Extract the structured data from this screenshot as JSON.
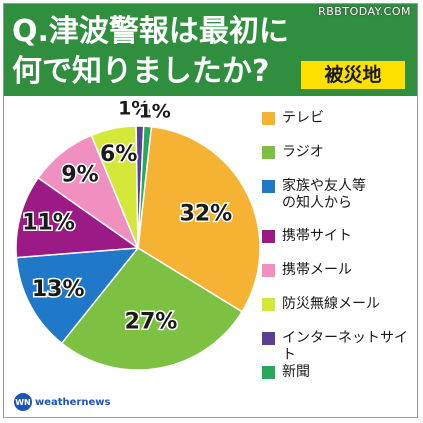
{
  "header": {
    "title": "Q.津波警報は最初に何で知りましたか?",
    "badge": "被災地",
    "watermark": "RBBTODAY.COM"
  },
  "logo": {
    "mark": "WN",
    "text": "weathernews"
  },
  "colors": {
    "header_bg": "#2f8f3e",
    "badge_bg": "#ffe100"
  },
  "chart_data": {
    "type": "pie",
    "title": "Q.津波警報は最初に何で知りましたか?",
    "slices": [
      {
        "label": "テレビ",
        "value": 32,
        "display": "32%",
        "color": "#f6b233"
      },
      {
        "label": "ラジオ",
        "value": 27,
        "display": "27%",
        "color": "#7cc142"
      },
      {
        "label": "家族や友人等の知人から",
        "value": 13,
        "display": "13%",
        "color": "#1f78c8"
      },
      {
        "label": "携帯サイト",
        "value": 11,
        "display": "11%",
        "color": "#9c1a86"
      },
      {
        "label": "携帯メール",
        "value": 9,
        "display": "9%",
        "color": "#f08fc0"
      },
      {
        "label": "防災無線メール",
        "value": 6,
        "display": "6%",
        "color": "#d4e83a"
      },
      {
        "label": "インターネットサイト",
        "value": 1,
        "display": "1%",
        "color": "#5b3f95"
      },
      {
        "label": "新聞",
        "value": 1,
        "display": "1%",
        "color": "#25a85a"
      }
    ],
    "legend_position": "right"
  },
  "legend": [
    {
      "line1": "テレビ",
      "line2": ""
    },
    {
      "line1": "ラジオ",
      "line2": ""
    },
    {
      "line1": "家族や友人等",
      "line2": "の知人から"
    },
    {
      "line1": "携帯サイト",
      "line2": ""
    },
    {
      "line1": "携帯メール",
      "line2": ""
    },
    {
      "line1": "防災無線メール",
      "line2": ""
    },
    {
      "line1": "インターネットサイト",
      "line2": ""
    },
    {
      "line1": "新聞",
      "line2": ""
    }
  ]
}
